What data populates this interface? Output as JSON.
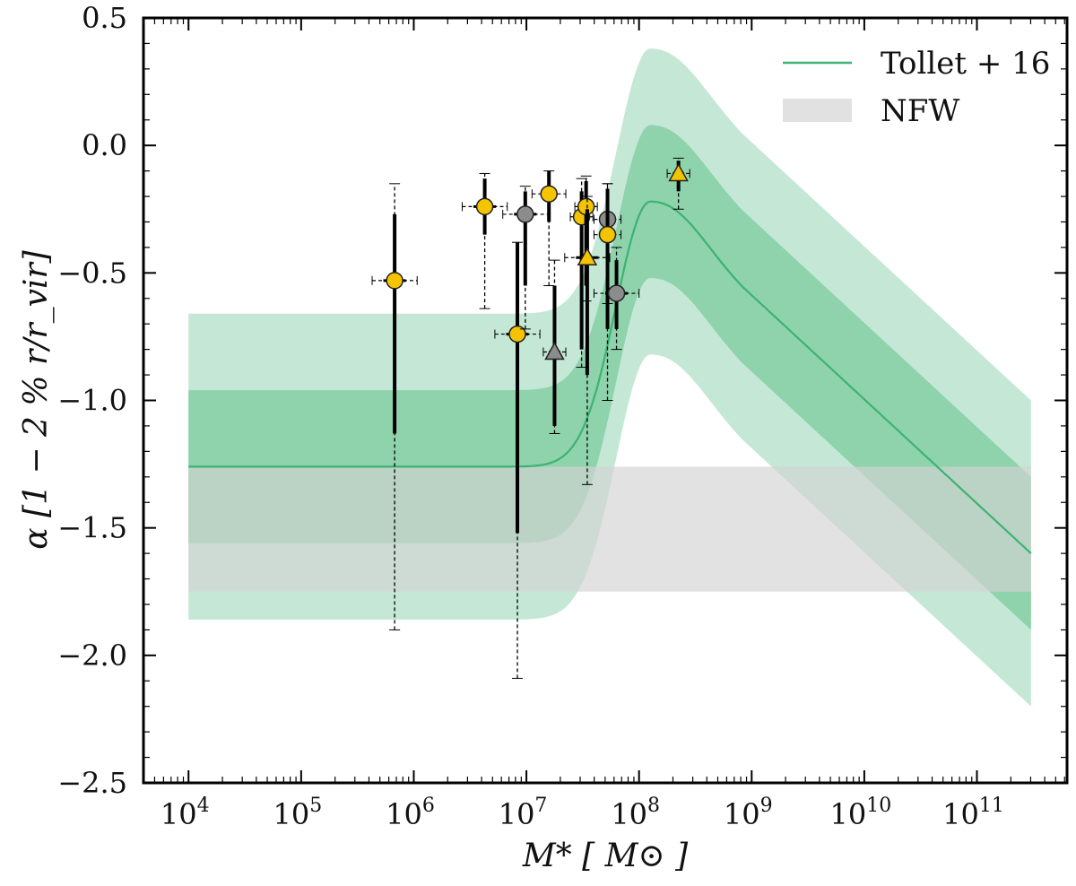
{
  "chart_data": {
    "type": "scatter",
    "x_scale": "log",
    "xlim_log10": [
      3.6,
      11.8
    ],
    "ylim": [
      -2.5,
      0.5
    ],
    "ylabel": "α [1 − 2 % r/r_vir]",
    "xlabel": "M* [ M⊙ ]",
    "y_ticks": [
      0.5,
      0.0,
      -0.5,
      -1.0,
      -1.5,
      -2.0,
      -2.5
    ],
    "y_tick_labels": [
      "0.5",
      "0.0",
      "−0.5",
      "−1.0",
      "−1.5",
      "−2.0",
      "−2.5"
    ],
    "x_ticks_log10": [
      4,
      5,
      6,
      7,
      8,
      9,
      10,
      11
    ],
    "x_tick_labels": [
      "10",
      "10",
      "10",
      "10",
      "10",
      "10",
      "10",
      "10"
    ],
    "x_tick_exponents": [
      "4",
      "5",
      "6",
      "7",
      "8",
      "9",
      "10",
      "11"
    ],
    "legend": {
      "placement": "upper-right",
      "entries": [
        {
          "label": "Tollet + 16",
          "kind": "line",
          "color": "#3cb371"
        },
        {
          "label": "NFW",
          "kind": "band",
          "color": "#d9d9d9"
        }
      ]
    },
    "colors": {
      "model_line": "#3cb371",
      "band_inner": "#8fd3ad",
      "band_outer": "#c5e8d6",
      "nfw_band": "#d3d3d3",
      "yellow": "#f5c400",
      "gray": "#8c8c8c"
    },
    "model": {
      "x_range_log10": [
        4.0,
        11.48
      ],
      "peak_log10": 8.1,
      "alpha_low": -1.26,
      "alpha_peak": -0.22,
      "alpha_at_end": -1.6,
      "inner_halfwidth": 0.3,
      "outer_halfwidth": 0.6
    },
    "nfw_band": {
      "x_range_log10": [
        4.0,
        11.48
      ],
      "y_range": [
        -1.75,
        -1.26
      ]
    },
    "points": [
      {
        "x_log10": 5.83,
        "y": -0.53,
        "marker": "circle",
        "color": "yellow",
        "x_err": 0.2,
        "y_inner": [
          -1.13,
          -0.27
        ],
        "y_outer": [
          -1.9,
          -0.15
        ]
      },
      {
        "x_log10": 6.63,
        "y": -0.24,
        "marker": "circle",
        "color": "yellow",
        "x_err": 0.2,
        "y_inner": [
          -0.35,
          -0.13
        ],
        "y_outer": [
          -0.64,
          -0.11
        ]
      },
      {
        "x_log10": 6.92,
        "y": -0.74,
        "marker": "circle",
        "color": "yellow",
        "x_err": 0.2,
        "y_inner": [
          -1.52,
          -0.38
        ],
        "y_outer": [
          -2.09,
          -0.38
        ]
      },
      {
        "x_log10": 6.99,
        "y": -0.27,
        "marker": "circle",
        "color": "gray",
        "x_err": 0.2,
        "y_inner": [
          -0.55,
          -0.18
        ],
        "y_outer": [
          -0.72,
          -0.16
        ]
      },
      {
        "x_log10": 7.2,
        "y": -0.19,
        "marker": "circle",
        "color": "yellow",
        "x_err": 0.15,
        "y_inner": [
          -0.3,
          -0.1
        ],
        "y_outer": [
          -0.55,
          -0.1
        ]
      },
      {
        "x_log10": 7.25,
        "y": -0.81,
        "marker": "triangle",
        "color": "gray",
        "x_err": 0.1,
        "y_inner": [
          -1.1,
          -0.55
        ],
        "y_outer": [
          -1.13,
          -0.45
        ]
      },
      {
        "x_log10": 7.49,
        "y": -0.28,
        "marker": "circle",
        "color": "yellow",
        "x_err": 0.1,
        "y_inner": [
          -0.8,
          -0.18
        ],
        "y_outer": [
          -0.87,
          -0.13
        ]
      },
      {
        "x_log10": 7.53,
        "y": -0.24,
        "marker": "circle",
        "color": "yellow",
        "x_err": 0.1,
        "y_inner": [
          -0.55,
          -0.14
        ],
        "y_outer": [
          -0.61,
          -0.12
        ]
      },
      {
        "x_log10": 7.54,
        "y": -0.44,
        "marker": "triangle",
        "color": "yellow",
        "x_err": 0.2,
        "y_inner": [
          -0.9,
          -0.25
        ],
        "y_outer": [
          -1.33,
          -0.2
        ]
      },
      {
        "x_log10": 7.72,
        "y": -0.29,
        "marker": "circle",
        "color": "gray",
        "x_err": 0.12,
        "y_inner": [
          -0.45,
          -0.17
        ],
        "y_outer": [
          -0.62,
          -0.15
        ]
      },
      {
        "x_log10": 7.72,
        "y": -0.35,
        "marker": "circle",
        "color": "yellow",
        "x_err": 0.12,
        "y_inner": [
          -0.72,
          -0.22
        ],
        "y_outer": [
          -1.0,
          -0.15
        ]
      },
      {
        "x_log10": 7.8,
        "y": -0.58,
        "marker": "circle",
        "color": "gray",
        "x_err": 0.2,
        "y_inner": [
          -0.72,
          -0.45
        ],
        "y_outer": [
          -0.8,
          -0.4
        ]
      },
      {
        "x_log10": 8.35,
        "y": -0.11,
        "marker": "triangle",
        "color": "yellow",
        "x_err": 0.1,
        "y_inner": [
          -0.18,
          -0.06
        ],
        "y_outer": [
          -0.25,
          -0.05
        ]
      }
    ]
  }
}
